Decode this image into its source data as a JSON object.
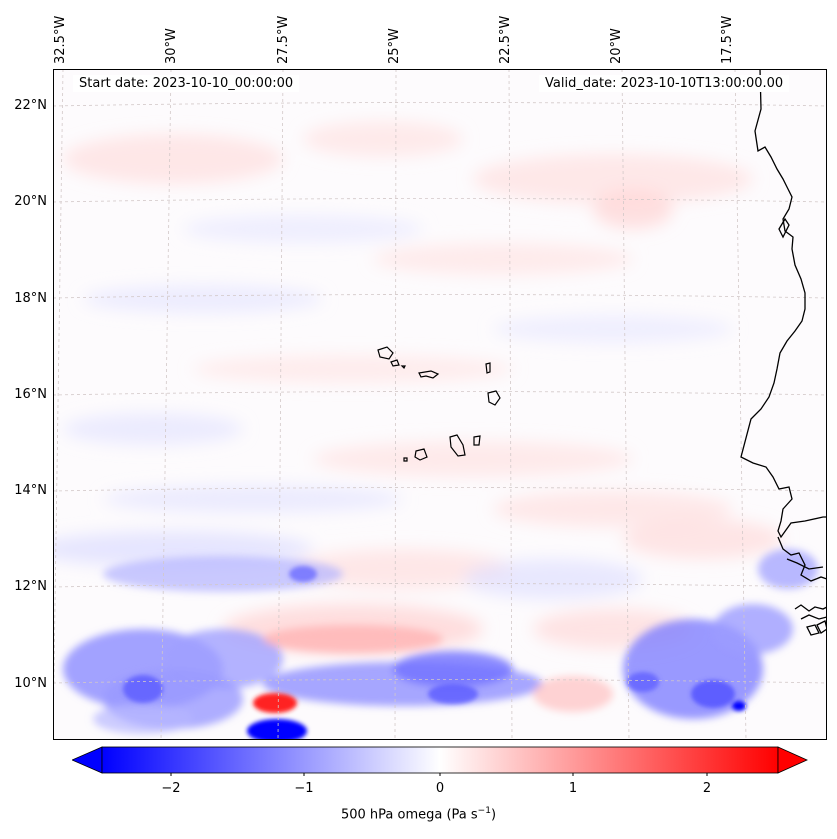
{
  "header": {
    "start_label": "Start date: 2023-10-10_00:00:00",
    "valid_label": "Valid_date: 2023-10-10T13:00:00.00"
  },
  "map": {
    "variable": "500 hPa omega",
    "units": "Pa s",
    "units_exponent": "−1",
    "lat_labels": [
      "22°N",
      "20°N",
      "18°N",
      "16°N",
      "14°N",
      "12°N",
      "10°N"
    ],
    "lon_labels": [
      "32.5°W",
      "30°W",
      "27.5°W",
      "25°W",
      "22.5°W",
      "20°W",
      "17.5°W"
    ],
    "gridlines": true,
    "coastline_color": "#000000",
    "feature_names": [
      "cape-verde-islands",
      "west-african-coast"
    ]
  },
  "colorbar": {
    "colormap": "bwr",
    "min_color": "#0000ff",
    "mid_color": "#ffffff",
    "max_color": "#ff0000",
    "ticks": [
      "−2",
      "−1",
      "0",
      "1",
      "2"
    ],
    "range": [
      -2.6,
      2.6
    ],
    "extend": "both",
    "label": "500 hPa omega (Pa s"
  }
}
